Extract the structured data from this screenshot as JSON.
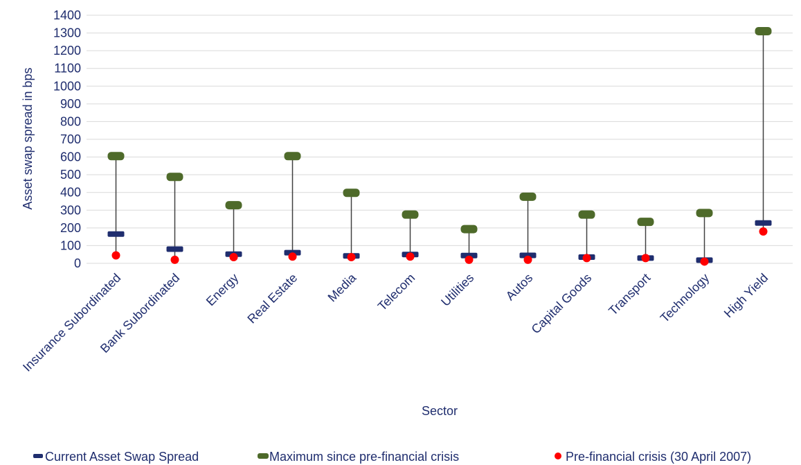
{
  "chart_data": {
    "type": "scatter",
    "title": "",
    "xlabel": "Sector",
    "ylabel": "Asset swap spread in bps",
    "ylim": [
      0,
      1400
    ],
    "ytick_step": 100,
    "grid": "horizontal",
    "legend_position": "bottom",
    "categories": [
      "Insurance Subordinated",
      "Bank Subordinated",
      "Energy",
      "Real Estate",
      "Media",
      "Telecom",
      "Utilities",
      "Autos",
      "Capital Goods",
      "Transport",
      "Technology",
      "High Yield"
    ],
    "series": [
      {
        "name": "Current Asset Swap Spread",
        "color": "#1f2d6e",
        "marker": "dash",
        "values": [
          165,
          80,
          52,
          60,
          42,
          50,
          44,
          45,
          35,
          30,
          18,
          228
        ]
      },
      {
        "name": "Maximum since pre-financial crisis",
        "color": "#4e6a2a",
        "marker": "bar",
        "values": [
          605,
          488,
          328,
          605,
          398,
          275,
          193,
          376,
          275,
          234,
          284,
          1310
        ]
      },
      {
        "name": "Pre-financial crisis (30 April 2007)",
        "color": "#ff0000",
        "marker": "circle",
        "values": [
          45,
          20,
          35,
          38,
          35,
          38,
          20,
          20,
          30,
          30,
          10,
          180
        ]
      }
    ],
    "range_line_color": "#404040"
  }
}
